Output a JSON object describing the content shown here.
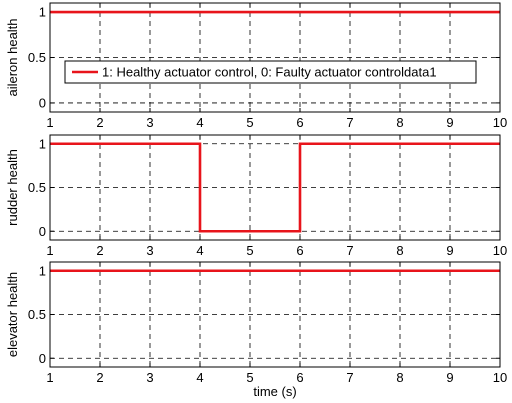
{
  "chart_data": [
    {
      "type": "line",
      "ylabel": "aileron health",
      "xlabel": "",
      "xlim": [
        1,
        10
      ],
      "ylim": [
        -0.1,
        1.1
      ],
      "xticks": [
        "1",
        "2",
        "3",
        "4",
        "5",
        "6",
        "7",
        "8",
        "9",
        "10"
      ],
      "yticks": [
        "0",
        "0.5",
        "1"
      ],
      "grid": true,
      "legend": {
        "placement": "center",
        "entries": [
          "1: Healthy actuator control, 0: Faulty actuator controldata1"
        ]
      },
      "series": [
        {
          "name": "1: Healthy actuator control, 0: Faulty actuator controldata1",
          "color": "#e8141b",
          "x": [
            1,
            10
          ],
          "y": [
            1,
            1
          ]
        }
      ]
    },
    {
      "type": "line",
      "ylabel": "rudder health",
      "xlabel": "",
      "xlim": [
        1,
        10
      ],
      "ylim": [
        -0.1,
        1.1
      ],
      "xticks": [
        "1",
        "2",
        "3",
        "4",
        "5",
        "6",
        "7",
        "8",
        "9",
        "10"
      ],
      "yticks": [
        "0",
        "0.5",
        "1"
      ],
      "grid": true,
      "series": [
        {
          "color": "#e8141b",
          "x": [
            1,
            4,
            4,
            6,
            6,
            10
          ],
          "y": [
            1,
            1,
            0,
            0,
            1,
            1
          ]
        }
      ]
    },
    {
      "type": "line",
      "ylabel": "elevator health",
      "xlabel": "time (s)",
      "xlim": [
        1,
        10
      ],
      "ylim": [
        -0.1,
        1.1
      ],
      "xticks": [
        "1",
        "2",
        "3",
        "4",
        "5",
        "6",
        "7",
        "8",
        "9",
        "10"
      ],
      "yticks": [
        "0",
        "0.5",
        "1"
      ],
      "grid": true,
      "series": [
        {
          "color": "#e8141b",
          "x": [
            1,
            10
          ],
          "y": [
            1,
            1
          ]
        }
      ]
    }
  ]
}
